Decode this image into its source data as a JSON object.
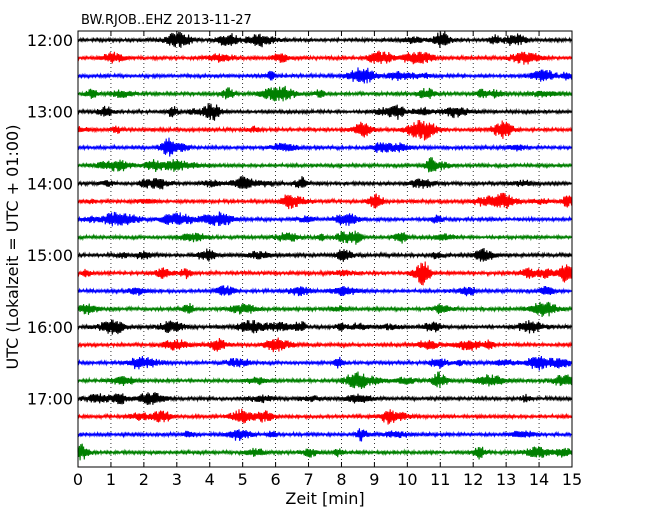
{
  "chart_data": {
    "type": "line",
    "title": "BW.RJOB..EHZ 2013-11-27",
    "xlabel": "Zeit  [min]",
    "ylabel": "UTC (Lokalzeit = UTC + 01:00)",
    "xlim": [
      0,
      15
    ],
    "x_ticks": [
      "0",
      "1",
      "2",
      "3",
      "4",
      "5",
      "6",
      "7",
      "8",
      "9",
      "10",
      "11",
      "12",
      "13",
      "14",
      "15"
    ],
    "y_ticks": [
      "12:00",
      "13:00",
      "14:00",
      "15:00",
      "16:00",
      "17:00"
    ],
    "grid": "vertical dotted",
    "trace_interval_minutes": 15,
    "trace_count": 24,
    "trace_colors": [
      "#000000",
      "#ff0000",
      "#0000ff",
      "#008000"
    ]
  }
}
